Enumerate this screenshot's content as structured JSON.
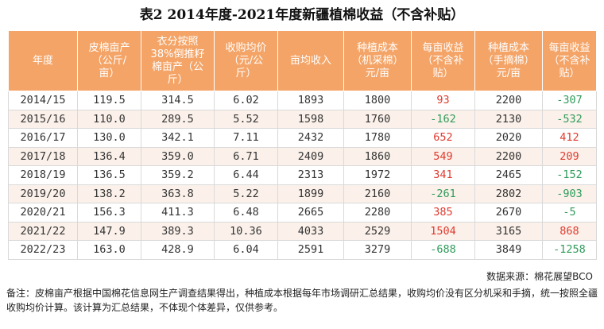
{
  "title": "表2 2014年度-2021年度新疆植棉收益（不含补贴）",
  "headers": [
    "年度",
    "皮棉亩产\n（公斤/\n亩）",
    "衣分按照\n38%倒推籽\n棉亩产（公\n斤）",
    "收购均价\n（元/公\n斤）",
    "亩均收入",
    "种植成本\n（机采棉）\n元/亩",
    "每亩收益\n（不含补\n贴）",
    "种植成本\n（手摘棉）\n元/亩",
    "每亩收益\n（不含补\n贴）"
  ],
  "rows": [
    [
      "2014/15",
      "119.5",
      "314.5",
      "6.02",
      "1893",
      "1800",
      "93",
      "2200",
      "-307"
    ],
    [
      "2015/16",
      "110.0",
      "289.5",
      "5.52",
      "1598",
      "1760",
      "-162",
      "2130",
      "-532"
    ],
    [
      "2016/17",
      "130.0",
      "342.1",
      "7.11",
      "2432",
      "1780",
      "652",
      "2020",
      "412"
    ],
    [
      "2017/18",
      "136.4",
      "359.0",
      "6.71",
      "2409",
      "1860",
      "549",
      "2200",
      "209"
    ],
    [
      "2018/19",
      "136.5",
      "359.2",
      "6.44",
      "2313",
      "1972",
      "341",
      "2465",
      "-152"
    ],
    [
      "2019/20",
      "138.2",
      "363.8",
      "5.22",
      "1899",
      "2160",
      "-261",
      "2802",
      "-903"
    ],
    [
      "2020/21",
      "156.3",
      "411.3",
      "6.48",
      "2665",
      "2280",
      "385",
      "2670",
      "-5"
    ],
    [
      "2021/22",
      "147.9",
      "389.3",
      "10.36",
      "4033",
      "2529",
      "1504",
      "3165",
      "868"
    ],
    [
      "2022/23",
      "163.0",
      "428.9",
      "6.04",
      "2591",
      "3279",
      "-688",
      "3849",
      "-1258"
    ]
  ],
  "source": "数据来源：棉花展望BCO",
  "note": "备注：皮棉亩产根据中国棉花信息网生产调查结果得出，种植成本根据每年市场调研汇总结果，收购均价没有区分机采和手摘，统一按照全疆收购均价计算。该计算为汇总结果，不体现个体差异，仅供参考。",
  "colors": {
    "header_bg": "#f4a467",
    "positive": "#e03a2e",
    "negative": "#2f9b5a",
    "stripe": "#fbf1ea"
  }
}
